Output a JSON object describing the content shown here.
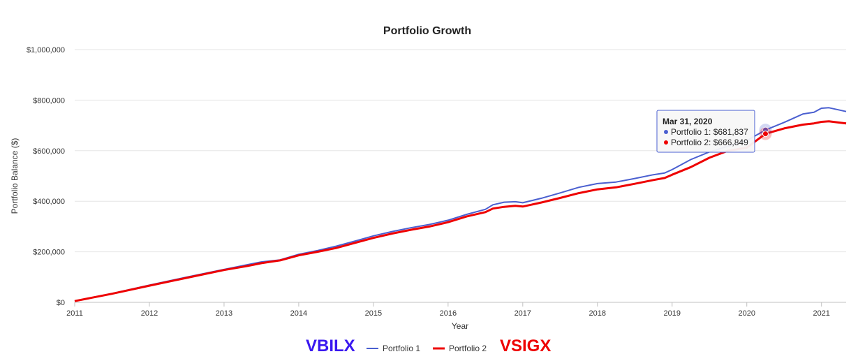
{
  "chart_data": {
    "type": "line",
    "title": "Portfolio Growth",
    "xlabel": "Year",
    "ylabel": "Portfolio Balance ($)",
    "xlim": [
      2011.0,
      2021.33
    ],
    "ylim": [
      0,
      1000000
    ],
    "x_ticks": [
      "2011",
      "2012",
      "2013",
      "2014",
      "2015",
      "2016",
      "2017",
      "2018",
      "2019",
      "2020",
      "2021"
    ],
    "y_ticks": [
      0,
      200000,
      400000,
      600000,
      800000,
      1000000
    ],
    "y_tick_labels": [
      "$0",
      "$200,000",
      "$400,000",
      "$600,000",
      "$800,000",
      "$1,000,000"
    ],
    "grid": true,
    "legend_position": "bottom",
    "series": [
      {
        "name": "Portfolio 1",
        "color": "#4a5fd0",
        "points": [
          [
            2011.0,
            5000
          ],
          [
            2011.5,
            35000
          ],
          [
            2012.0,
            68000
          ],
          [
            2012.5,
            100000
          ],
          [
            2013.0,
            130000
          ],
          [
            2013.3,
            148000
          ],
          [
            2013.5,
            160000
          ],
          [
            2013.75,
            168000
          ],
          [
            2014.0,
            190000
          ],
          [
            2014.25,
            205000
          ],
          [
            2014.5,
            222000
          ],
          [
            2014.75,
            242000
          ],
          [
            2015.0,
            263000
          ],
          [
            2015.25,
            280000
          ],
          [
            2015.5,
            295000
          ],
          [
            2015.75,
            308000
          ],
          [
            2016.0,
            325000
          ],
          [
            2016.25,
            348000
          ],
          [
            2016.5,
            368000
          ],
          [
            2016.6,
            386000
          ],
          [
            2016.75,
            396000
          ],
          [
            2016.9,
            398000
          ],
          [
            2017.0,
            394000
          ],
          [
            2017.25,
            412000
          ],
          [
            2017.5,
            433000
          ],
          [
            2017.75,
            455000
          ],
          [
            2018.0,
            470000
          ],
          [
            2018.25,
            476000
          ],
          [
            2018.5,
            490000
          ],
          [
            2018.75,
            505000
          ],
          [
            2018.9,
            512000
          ],
          [
            2019.0,
            525000
          ],
          [
            2019.25,
            565000
          ],
          [
            2019.5,
            595000
          ],
          [
            2019.75,
            618000
          ],
          [
            2020.0,
            640000
          ],
          [
            2020.25,
            681837
          ],
          [
            2020.5,
            712000
          ],
          [
            2020.75,
            745000
          ],
          [
            2020.9,
            752000
          ],
          [
            2021.0,
            768000
          ],
          [
            2021.1,
            770000
          ],
          [
            2021.33,
            755000
          ]
        ]
      },
      {
        "name": "Portfolio 2",
        "color": "#ee0000",
        "points": [
          [
            2011.0,
            5000
          ],
          [
            2011.5,
            34000
          ],
          [
            2012.0,
            66000
          ],
          [
            2012.5,
            97000
          ],
          [
            2013.0,
            128000
          ],
          [
            2013.3,
            143000
          ],
          [
            2013.5,
            155000
          ],
          [
            2013.75,
            166000
          ],
          [
            2014.0,
            186000
          ],
          [
            2014.25,
            200000
          ],
          [
            2014.5,
            215000
          ],
          [
            2014.75,
            235000
          ],
          [
            2015.0,
            255000
          ],
          [
            2015.25,
            272000
          ],
          [
            2015.5,
            287000
          ],
          [
            2015.75,
            300000
          ],
          [
            2016.0,
            317000
          ],
          [
            2016.25,
            340000
          ],
          [
            2016.5,
            357000
          ],
          [
            2016.6,
            371000
          ],
          [
            2016.75,
            378000
          ],
          [
            2016.9,
            382000
          ],
          [
            2017.0,
            379000
          ],
          [
            2017.25,
            395000
          ],
          [
            2017.5,
            413000
          ],
          [
            2017.75,
            432000
          ],
          [
            2018.0,
            447000
          ],
          [
            2018.25,
            455000
          ],
          [
            2018.5,
            469000
          ],
          [
            2018.75,
            484000
          ],
          [
            2018.9,
            492000
          ],
          [
            2019.0,
            505000
          ],
          [
            2019.25,
            535000
          ],
          [
            2019.5,
            572000
          ],
          [
            2019.75,
            600000
          ],
          [
            2020.0,
            612000
          ],
          [
            2020.25,
            666849
          ],
          [
            2020.5,
            688000
          ],
          [
            2020.75,
            703000
          ],
          [
            2020.9,
            708000
          ],
          [
            2021.0,
            714000
          ],
          [
            2021.1,
            716000
          ],
          [
            2021.33,
            708000
          ]
        ]
      }
    ],
    "tooltip": {
      "title": "Mar 31, 2020",
      "x": 2020.25,
      "lines": [
        "Portfolio 1: $681,837",
        "Portfolio 2: $666,849"
      ]
    }
  },
  "annotations": {
    "left_ticker": "VBILX",
    "left_ticker_color": "#3a18f0",
    "right_ticker": "VSIGX",
    "right_ticker_color": "#ee0000"
  }
}
